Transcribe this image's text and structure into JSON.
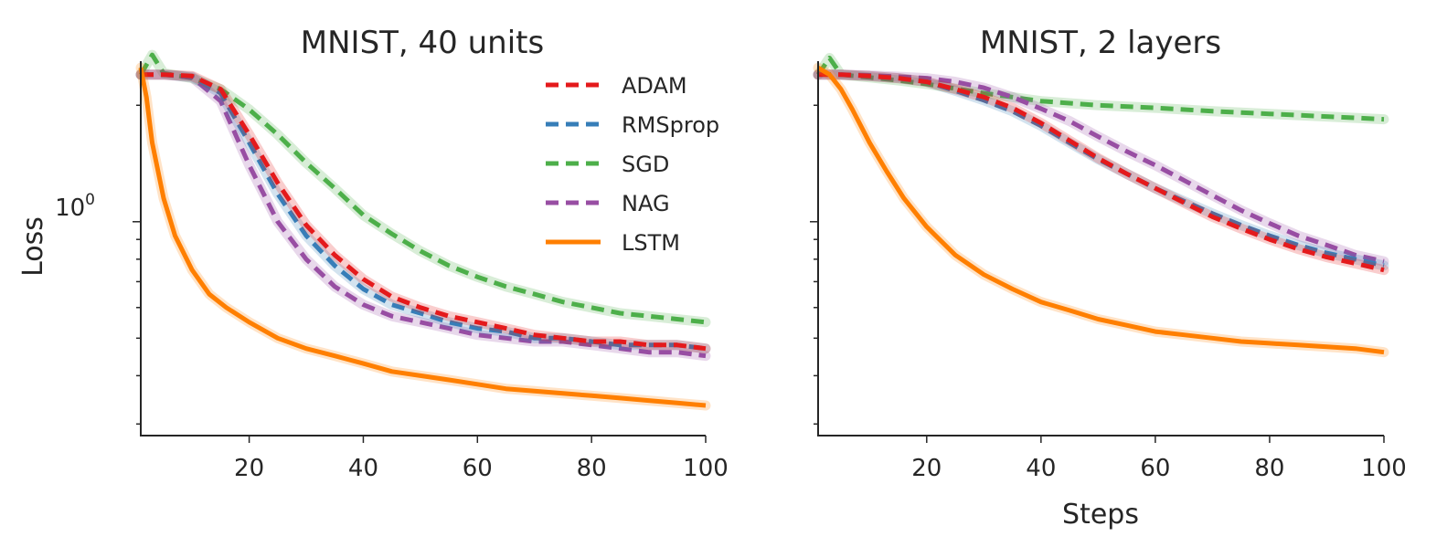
{
  "figure": {
    "legend_position": "top-right of left panel",
    "colors": {
      "ADAM": "#e41a1c",
      "RMSprop": "#377eb8",
      "SGD": "#4daf4a",
      "NAG": "#984ea3",
      "LSTM": "#ff7f00"
    },
    "legend": [
      {
        "name": "ADAM",
        "style": "dashed"
      },
      {
        "name": "RMSprop",
        "style": "dashed"
      },
      {
        "name": "SGD",
        "style": "dashed"
      },
      {
        "name": "NAG",
        "style": "dashed"
      },
      {
        "name": "LSTM",
        "style": "solid"
      }
    ]
  },
  "chart_data": [
    {
      "type": "line",
      "title": "MNIST, 40 units",
      "xlabel": "",
      "ylabel": "Loss",
      "yscale": "log",
      "xlim": [
        1,
        100
      ],
      "ylim": [
        0.28,
        2.6
      ],
      "xticks": [
        20,
        40,
        60,
        80,
        100
      ],
      "xtick_labels": [
        "20",
        "40",
        "60",
        "80",
        "100"
      ],
      "ytick_major": [
        {
          "value": 1,
          "label": "10",
          "exponent": "0"
        }
      ],
      "ytick_minor": [
        0.3,
        0.4,
        0.5,
        0.6,
        0.7,
        0.8,
        0.9,
        2
      ],
      "grid": false,
      "series": [
        {
          "name": "ADAM",
          "style": "dashed",
          "x": [
            1,
            5,
            10,
            15,
            20,
            25,
            30,
            35,
            40,
            45,
            50,
            55,
            60,
            65,
            70,
            75,
            80,
            85,
            90,
            95,
            100
          ],
          "y": [
            2.4,
            2.4,
            2.38,
            2.2,
            1.68,
            1.26,
            0.98,
            0.82,
            0.71,
            0.64,
            0.6,
            0.57,
            0.55,
            0.53,
            0.51,
            0.5,
            0.49,
            0.49,
            0.48,
            0.48,
            0.47
          ]
        },
        {
          "name": "RMSprop",
          "style": "dashed",
          "x": [
            1,
            5,
            10,
            15,
            20,
            25,
            30,
            35,
            40,
            45,
            50,
            55,
            60,
            65,
            70,
            75,
            80,
            85,
            90,
            95,
            100
          ],
          "y": [
            2.4,
            2.4,
            2.37,
            2.15,
            1.6,
            1.18,
            0.92,
            0.77,
            0.67,
            0.61,
            0.58,
            0.55,
            0.53,
            0.52,
            0.5,
            0.5,
            0.49,
            0.48,
            0.48,
            0.48,
            0.47
          ]
        },
        {
          "name": "SGD",
          "style": "dashed",
          "x": [
            1,
            3,
            5,
            10,
            15,
            20,
            25,
            30,
            35,
            40,
            45,
            50,
            55,
            60,
            65,
            70,
            75,
            80,
            85,
            90,
            95,
            100
          ],
          "y": [
            2.4,
            2.7,
            2.42,
            2.35,
            2.2,
            1.95,
            1.68,
            1.42,
            1.22,
            1.04,
            0.93,
            0.84,
            0.77,
            0.72,
            0.68,
            0.65,
            0.62,
            0.6,
            0.58,
            0.57,
            0.56,
            0.55
          ]
        },
        {
          "name": "NAG",
          "style": "dashed",
          "x": [
            1,
            5,
            10,
            15,
            20,
            25,
            30,
            35,
            40,
            45,
            50,
            55,
            60,
            65,
            70,
            75,
            80,
            85,
            90,
            95,
            100
          ],
          "y": [
            2.4,
            2.4,
            2.36,
            2.05,
            1.4,
            1.0,
            0.8,
            0.68,
            0.61,
            0.57,
            0.55,
            0.53,
            0.51,
            0.5,
            0.49,
            0.49,
            0.48,
            0.47,
            0.46,
            0.46,
            0.45
          ]
        },
        {
          "name": "LSTM",
          "style": "solid",
          "x": [
            1,
            2,
            3,
            5,
            7,
            10,
            13,
            16,
            20,
            25,
            30,
            35,
            40,
            45,
            50,
            55,
            60,
            65,
            70,
            75,
            80,
            85,
            90,
            95,
            100
          ],
          "y": [
            2.5,
            2.1,
            1.6,
            1.15,
            0.92,
            0.75,
            0.65,
            0.6,
            0.55,
            0.5,
            0.47,
            0.45,
            0.43,
            0.41,
            0.4,
            0.39,
            0.38,
            0.37,
            0.365,
            0.36,
            0.355,
            0.35,
            0.345,
            0.34,
            0.335
          ]
        }
      ]
    },
    {
      "type": "line",
      "title": "MNIST, 2 layers",
      "xlabel": "Steps",
      "ylabel": "",
      "yscale": "log",
      "xlim": [
        1,
        100
      ],
      "ylim": [
        0.28,
        2.6
      ],
      "xticks": [
        20,
        40,
        60,
        80,
        100
      ],
      "xtick_labels": [
        "20",
        "40",
        "60",
        "80",
        "100"
      ],
      "ytick_major": [
        {
          "value": 1,
          "label": "",
          "exponent": ""
        }
      ],
      "ytick_minor": [
        0.3,
        0.4,
        0.5,
        0.6,
        0.7,
        0.8,
        0.9,
        2
      ],
      "grid": false,
      "series": [
        {
          "name": "ADAM",
          "style": "dashed",
          "x": [
            1,
            5,
            10,
            15,
            20,
            25,
            30,
            35,
            40,
            45,
            50,
            55,
            60,
            65,
            70,
            75,
            80,
            85,
            90,
            95,
            100
          ],
          "y": [
            2.4,
            2.4,
            2.38,
            2.35,
            2.3,
            2.2,
            2.1,
            1.97,
            1.8,
            1.62,
            1.46,
            1.33,
            1.22,
            1.12,
            1.03,
            0.96,
            0.9,
            0.85,
            0.81,
            0.78,
            0.75
          ]
        },
        {
          "name": "RMSprop",
          "style": "dashed",
          "x": [
            1,
            5,
            10,
            15,
            20,
            25,
            30,
            35,
            40,
            45,
            50,
            55,
            60,
            65,
            70,
            75,
            80,
            85,
            90,
            95,
            100
          ],
          "y": [
            2.4,
            2.4,
            2.38,
            2.35,
            2.3,
            2.18,
            2.06,
            1.93,
            1.77,
            1.6,
            1.45,
            1.33,
            1.22,
            1.13,
            1.05,
            0.98,
            0.92,
            0.87,
            0.83,
            0.8,
            0.77
          ]
        },
        {
          "name": "SGD",
          "style": "dashed",
          "x": [
            1,
            3,
            5,
            10,
            15,
            20,
            30,
            40,
            50,
            60,
            70,
            80,
            90,
            100
          ],
          "y": [
            2.4,
            2.65,
            2.4,
            2.36,
            2.32,
            2.27,
            2.15,
            2.05,
            2.0,
            1.97,
            1.93,
            1.9,
            1.87,
            1.84
          ]
        },
        {
          "name": "NAG",
          "style": "dashed",
          "x": [
            1,
            5,
            10,
            15,
            20,
            25,
            30,
            35,
            40,
            45,
            50,
            55,
            60,
            65,
            70,
            75,
            80,
            85,
            90,
            95,
            100
          ],
          "y": [
            2.4,
            2.4,
            2.39,
            2.37,
            2.35,
            2.3,
            2.22,
            2.1,
            1.96,
            1.82,
            1.66,
            1.52,
            1.4,
            1.28,
            1.17,
            1.07,
            0.99,
            0.92,
            0.87,
            0.82,
            0.79
          ]
        },
        {
          "name": "LSTM",
          "style": "solid",
          "x": [
            1,
            3,
            5,
            7,
            10,
            13,
            16,
            20,
            25,
            30,
            35,
            40,
            45,
            50,
            55,
            60,
            65,
            70,
            75,
            80,
            85,
            90,
            95,
            100
          ],
          "y": [
            2.5,
            2.4,
            2.2,
            1.95,
            1.6,
            1.35,
            1.15,
            0.97,
            0.82,
            0.73,
            0.67,
            0.62,
            0.59,
            0.56,
            0.54,
            0.52,
            0.51,
            0.5,
            0.49,
            0.485,
            0.48,
            0.475,
            0.47,
            0.46
          ]
        }
      ]
    }
  ]
}
